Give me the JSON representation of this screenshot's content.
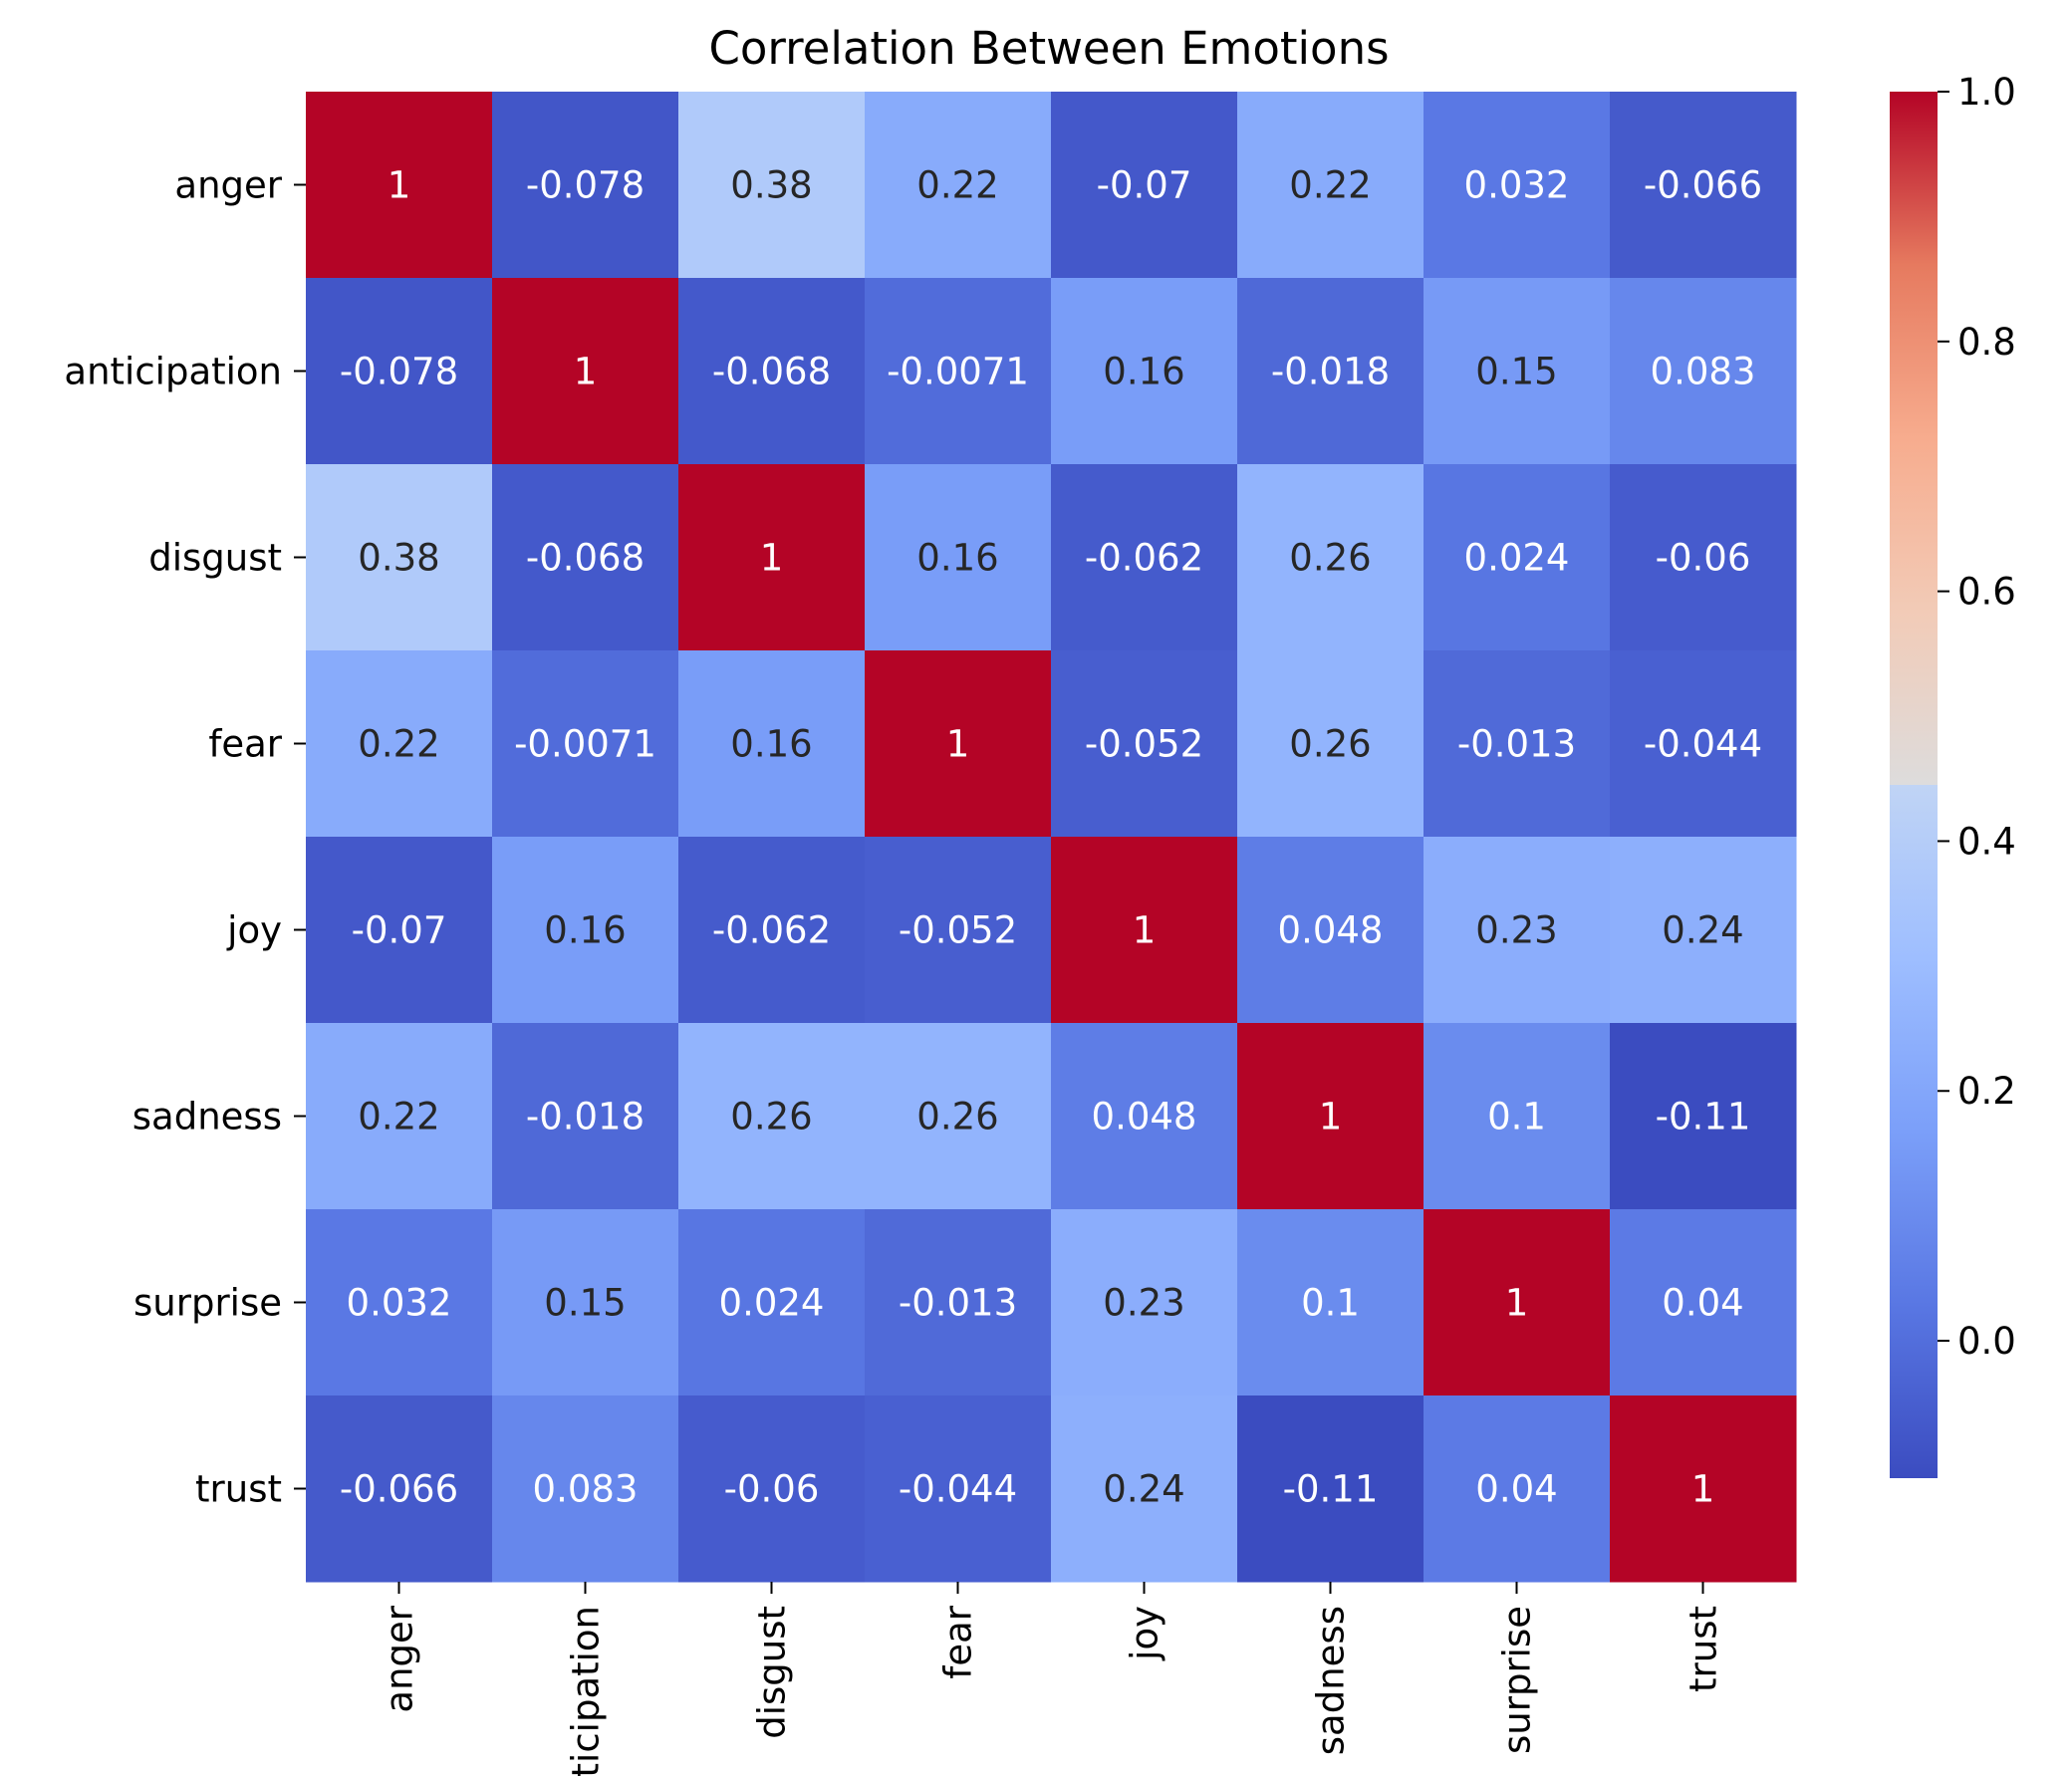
{
  "chart_data": {
    "type": "heatmap",
    "title": "Correlation Between Emotions",
    "xlabel": "",
    "ylabel": "",
    "colormap": "coolwarm",
    "vmin": -0.11,
    "vmax": 1.0,
    "x_categories": [
      "anger",
      "anticipation",
      "disgust",
      "fear",
      "joy",
      "sadness",
      "surprise",
      "trust"
    ],
    "y_categories": [
      "anger",
      "anticipation",
      "disgust",
      "fear",
      "joy",
      "sadness",
      "surprise",
      "trust"
    ],
    "values": [
      [
        1,
        -0.078,
        0.38,
        0.22,
        -0.07,
        0.22,
        0.032,
        -0.066
      ],
      [
        -0.078,
        1,
        -0.068,
        -0.0071,
        0.16,
        -0.018,
        0.15,
        0.083
      ],
      [
        0.38,
        -0.068,
        1,
        0.16,
        -0.062,
        0.26,
        0.024,
        -0.06
      ],
      [
        0.22,
        -0.0071,
        0.16,
        1,
        -0.052,
        0.26,
        -0.013,
        -0.044
      ],
      [
        -0.07,
        0.16,
        -0.062,
        -0.052,
        1,
        0.048,
        0.23,
        0.24
      ],
      [
        0.22,
        -0.018,
        0.26,
        0.26,
        0.048,
        1,
        0.1,
        -0.11
      ],
      [
        0.032,
        0.15,
        0.024,
        -0.013,
        0.23,
        0.1,
        1,
        0.04
      ],
      [
        -0.066,
        0.083,
        -0.06,
        -0.044,
        0.24,
        -0.11,
        0.04,
        1
      ]
    ],
    "annotations": [
      [
        "1",
        "-0.078",
        "0.38",
        "0.22",
        "-0.07",
        "0.22",
        "0.032",
        "-0.066"
      ],
      [
        "-0.078",
        "1",
        "-0.068",
        "-0.0071",
        "0.16",
        "-0.018",
        "0.15",
        "0.083"
      ],
      [
        "0.38",
        "-0.068",
        "1",
        "0.16",
        "-0.062",
        "0.26",
        "0.024",
        "-0.06"
      ],
      [
        "0.22",
        "-0.0071",
        "0.16",
        "1",
        "-0.052",
        "0.26",
        "-0.013",
        "-0.044"
      ],
      [
        "-0.07",
        "0.16",
        "-0.062",
        "-0.052",
        "1",
        "0.048",
        "0.23",
        "0.24"
      ],
      [
        "0.22",
        "-0.018",
        "0.26",
        "0.26",
        "0.048",
        "1",
        "0.1",
        "-0.11"
      ],
      [
        "0.032",
        "0.15",
        "0.024",
        "-0.013",
        "0.23",
        "0.1",
        "1",
        "0.04"
      ],
      [
        "-0.066",
        "0.083",
        "-0.06",
        "-0.044",
        "0.24",
        "-0.11",
        "0.04",
        "1"
      ]
    ],
    "colorbar": {
      "ticks": [
        0.0,
        0.2,
        0.4,
        0.6,
        0.8,
        1.0
      ],
      "tick_labels": [
        "0.0",
        "0.2",
        "0.4",
        "0.6",
        "0.8",
        "1.0"
      ]
    }
  }
}
